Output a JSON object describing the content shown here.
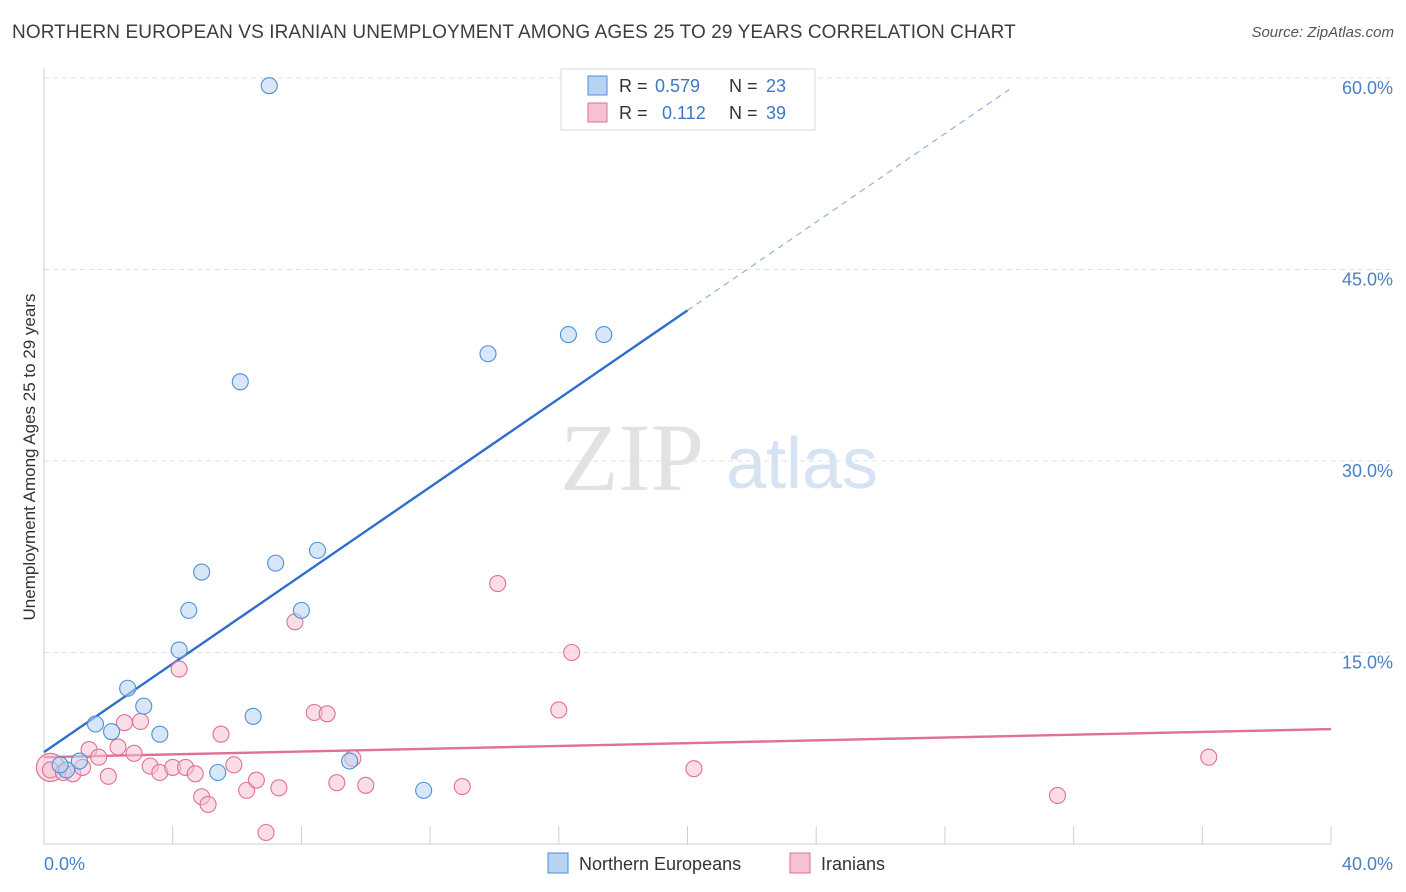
{
  "title": "NORTHERN EUROPEAN VS IRANIAN UNEMPLOYMENT AMONG AGES 25 TO 29 YEARS CORRELATION CHART",
  "source": "Source: ZipAtlas.com",
  "watermark": {
    "zip": "ZIP",
    "atlas": "atlas"
  },
  "chart_data": {
    "type": "scatter",
    "title": "NORTHERN EUROPEAN VS IRANIAN UNEMPLOYMENT AMONG AGES 25 TO 29 YEARS CORRELATION CHART",
    "xlabel": "",
    "ylabel": "Unemployment Among Ages 25 to 29 years",
    "xlim": [
      0,
      40
    ],
    "ylim": [
      0,
      60
    ],
    "x_tick_labels": [
      "0.0%",
      "40.0%"
    ],
    "y_ticks": [
      15,
      30,
      45,
      60
    ],
    "y_tick_labels": [
      "15.0%",
      "30.0%",
      "45.0%",
      "60.0%"
    ],
    "grid": true,
    "legend_position": "top-center",
    "stats": [
      {
        "r_label": "R =",
        "r_value": "0.579",
        "n_label": "N =",
        "n_value": "23"
      },
      {
        "r_label": "R =",
        "r_value": "0.112",
        "n_label": "N =",
        "n_value": "39"
      }
    ],
    "series": [
      {
        "name": "Northern Europeans",
        "color": "#4a90d9",
        "fill": "#b8d3f2",
        "trend": {
          "x0": 0,
          "y0": 7.2,
          "x1": 20,
          "y1": 41.8,
          "dash_to_x": 30,
          "dash_to_y": 59.1
        },
        "points": [
          [
            7.0,
            59.4
          ],
          [
            0.7,
            5.8
          ],
          [
            0.5,
            6.2
          ],
          [
            1.1,
            6.5
          ],
          [
            1.6,
            9.4
          ],
          [
            2.1,
            8.8
          ],
          [
            2.6,
            12.2
          ],
          [
            3.1,
            10.8
          ],
          [
            3.6,
            8.6
          ],
          [
            4.2,
            15.2
          ],
          [
            4.5,
            18.3
          ],
          [
            4.9,
            21.3
          ],
          [
            5.4,
            5.6
          ],
          [
            6.1,
            36.2
          ],
          [
            6.5,
            10.0
          ],
          [
            7.2,
            22.0
          ],
          [
            8.0,
            18.3
          ],
          [
            8.5,
            23.0
          ],
          [
            9.5,
            6.5
          ],
          [
            11.8,
            4.2
          ],
          [
            13.8,
            38.4
          ],
          [
            16.3,
            39.9
          ],
          [
            17.4,
            39.9
          ]
        ]
      },
      {
        "name": "Iranians",
        "color": "#e07095",
        "fill": "#f6c1d1",
        "trend": {
          "x0": 0,
          "y0": 6.8,
          "x1": 40,
          "y1": 9.0
        },
        "points": [
          [
            0.2,
            5.8
          ],
          [
            0.6,
            5.6
          ],
          [
            0.9,
            5.5
          ],
          [
            1.2,
            6.0
          ],
          [
            1.4,
            7.4
          ],
          [
            1.7,
            6.8
          ],
          [
            2.0,
            5.3
          ],
          [
            2.3,
            7.6
          ],
          [
            2.5,
            9.5
          ],
          [
            2.8,
            7.1
          ],
          [
            3.0,
            9.6
          ],
          [
            3.3,
            6.1
          ],
          [
            3.6,
            5.6
          ],
          [
            4.0,
            6.0
          ],
          [
            4.2,
            13.7
          ],
          [
            4.4,
            6.0
          ],
          [
            4.7,
            5.5
          ],
          [
            4.9,
            3.7
          ],
          [
            5.1,
            3.1
          ],
          [
            5.5,
            8.6
          ],
          [
            5.9,
            6.2
          ],
          [
            6.3,
            4.2
          ],
          [
            6.6,
            5.0
          ],
          [
            6.9,
            0.9
          ],
          [
            7.3,
            4.4
          ],
          [
            7.8,
            17.4
          ],
          [
            8.4,
            10.3
          ],
          [
            8.8,
            10.2
          ],
          [
            9.1,
            4.8
          ],
          [
            9.6,
            6.7
          ],
          [
            10.0,
            4.6
          ],
          [
            13.0,
            4.5
          ],
          [
            14.1,
            20.4
          ],
          [
            16.0,
            10.5
          ],
          [
            16.4,
            15.0
          ],
          [
            20.2,
            5.9
          ],
          [
            31.5,
            3.8
          ],
          [
            36.2,
            6.8
          ]
        ],
        "big_points": [
          [
            0.2,
            6.0
          ]
        ]
      }
    ]
  }
}
